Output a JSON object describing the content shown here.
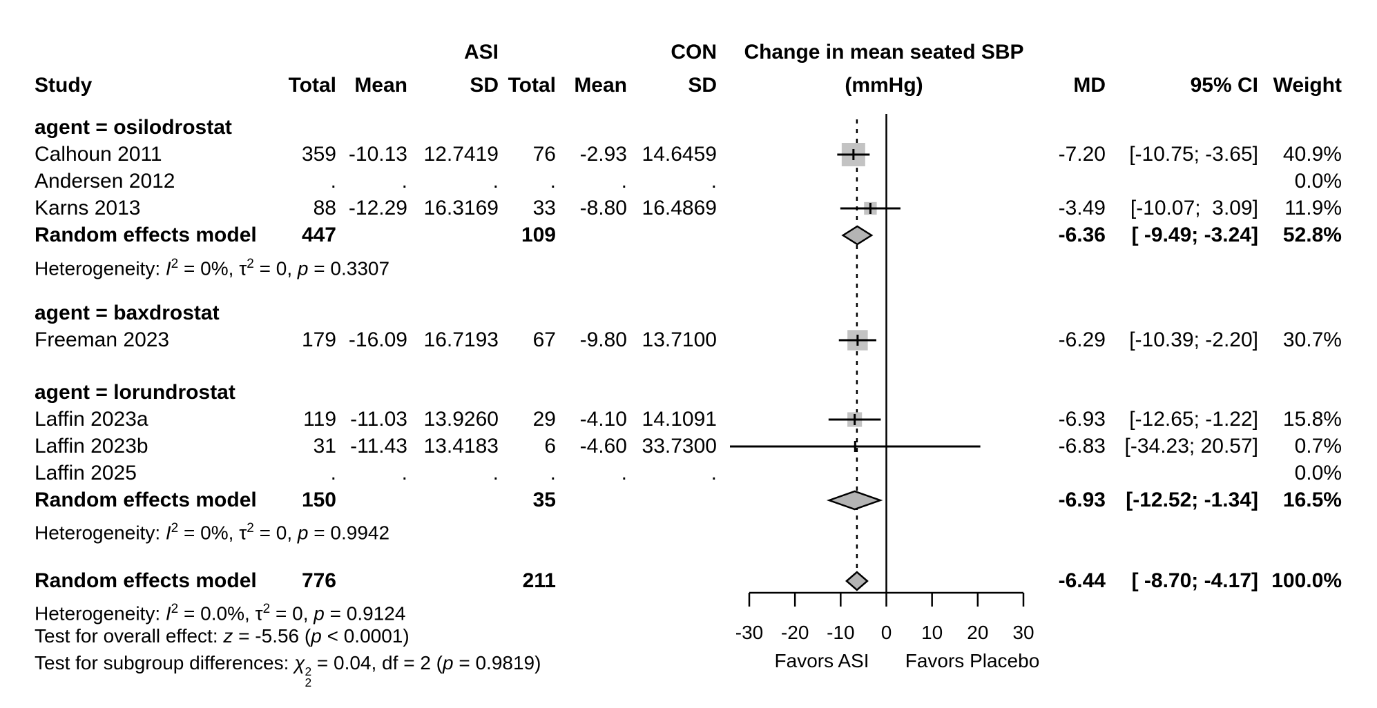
{
  "header": {
    "study": "Study",
    "asi": "ASI",
    "con": "CON",
    "total": "Total",
    "mean": "Mean",
    "sd": "SD",
    "plot_title": "Change in mean seated SBP",
    "plot_title2": "(mmHg)",
    "md": "MD",
    "ci": "95% CI",
    "weight": "Weight"
  },
  "rows": [
    {
      "type": "group",
      "bold": true,
      "label": "agent = osilodrostat"
    },
    {
      "type": "study",
      "bold": false,
      "label": "Calhoun 2011",
      "total1": "359",
      "mean1": "-10.13",
      "sd1": "12.7419",
      "total2": "76",
      "mean2": "-2.93",
      "sd2": "14.6459",
      "md": "-7.20",
      "ci": "[-10.75; -3.65]",
      "weight": "40.9%"
    },
    {
      "type": "study",
      "bold": false,
      "label": "Andersen 2012",
      "total1": ".",
      "mean1": ".",
      "sd1": ".",
      "total2": ".",
      "mean2": ".",
      "sd2": ".",
      "md": "",
      "ci": "",
      "weight": "0.0%"
    },
    {
      "type": "study",
      "bold": false,
      "label": "Karns 2013",
      "total1": "88",
      "mean1": "-12.29",
      "sd1": "16.3169",
      "total2": "33",
      "mean2": "-8.80",
      "sd2": "16.4869",
      "md": "-3.49",
      "ci": "[-10.07;  3.09]",
      "weight": "11.9%"
    },
    {
      "type": "pooled",
      "bold": true,
      "label": "Random effects model",
      "total1": "447",
      "total2": "109",
      "md": "-6.36",
      "ci": "[ -9.49; -3.24]",
      "weight": "52.8%"
    },
    {
      "type": "rich",
      "bold": false,
      "text": "Heterogeneity: I² = 0%, τ² = 0, p = 0.3307",
      "segs": [
        {
          "t": "Heterogeneity: "
        },
        {
          "t": "I",
          "i": true
        },
        {
          "t": "2",
          "sup": true
        },
        {
          "t": " = 0%, τ"
        },
        {
          "t": "2",
          "sup": true
        },
        {
          "t": " = 0, "
        },
        {
          "t": "p",
          "i": true
        },
        {
          "t": " = 0.3307"
        }
      ]
    },
    {
      "type": "group",
      "bold": true,
      "label": "agent = baxdrostat"
    },
    {
      "type": "study",
      "bold": false,
      "label": "Freeman 2023",
      "total1": "179",
      "mean1": "-16.09",
      "sd1": "16.7193",
      "total2": "67",
      "mean2": "-9.80",
      "sd2": "13.7100",
      "md": "-6.29",
      "ci": "[-10.39; -2.20]",
      "weight": "30.7%"
    },
    {
      "type": "group",
      "bold": true,
      "label": "agent = lorundrostat"
    },
    {
      "type": "study",
      "bold": false,
      "label": "Laffin 2023a",
      "total1": "119",
      "mean1": "-11.03",
      "sd1": "13.9260",
      "total2": "29",
      "mean2": "-4.10",
      "sd2": "14.1091",
      "md": "-6.93",
      "ci": "[-12.65; -1.22]",
      "weight": "15.8%"
    },
    {
      "type": "study",
      "bold": false,
      "label": "Laffin 2023b",
      "total1": "31",
      "mean1": "-11.43",
      "sd1": "13.4183",
      "total2": "6",
      "mean2": "-4.60",
      "sd2": "33.7300",
      "md": "-6.83",
      "ci": "[-34.23; 20.57]",
      "weight": "0.7%"
    },
    {
      "type": "study",
      "bold": false,
      "label": "Laffin 2025",
      "total1": ".",
      "mean1": ".",
      "sd1": ".",
      "total2": ".",
      "mean2": ".",
      "sd2": ".",
      "md": "",
      "ci": "",
      "weight": "0.0%"
    },
    {
      "type": "pooled",
      "bold": true,
      "label": "Random effects model",
      "total1": "150",
      "total2": "35",
      "md": "-6.93",
      "ci": "[-12.52; -1.34]",
      "weight": "16.5%"
    },
    {
      "type": "rich",
      "bold": false,
      "text": "Heterogeneity: I² = 0%, τ² = 0, p = 0.9942",
      "segs": [
        {
          "t": "Heterogeneity: "
        },
        {
          "t": "I",
          "i": true
        },
        {
          "t": "2",
          "sup": true
        },
        {
          "t": " = 0%, τ"
        },
        {
          "t": "2",
          "sup": true
        },
        {
          "t": " = 0, "
        },
        {
          "t": "p",
          "i": true
        },
        {
          "t": " = 0.9942"
        }
      ]
    },
    {
      "type": "pooled",
      "bold": true,
      "label": "Random effects model",
      "total1": "776",
      "total2": "211",
      "md": "-6.44",
      "ci": "[ -8.70; -4.17]",
      "weight": "100.0%"
    },
    {
      "type": "rich",
      "bold": false,
      "text": "Heterogeneity: I² = 0.0%, τ² = 0, p = 0.9124",
      "segs": [
        {
          "t": "Heterogeneity: "
        },
        {
          "t": "I",
          "i": true
        },
        {
          "t": "2",
          "sup": true
        },
        {
          "t": " = 0.0%, τ"
        },
        {
          "t": "2",
          "sup": true
        },
        {
          "t": " = 0, "
        },
        {
          "t": "p",
          "i": true
        },
        {
          "t": " = 0.9124"
        }
      ]
    },
    {
      "type": "rich",
      "bold": false,
      "text": "Test for overall effect: z = -5.56 (p < 0.0001)",
      "segs": [
        {
          "t": "Test for overall effect: "
        },
        {
          "t": "z",
          "i": true
        },
        {
          "t": " = -5.56 ("
        },
        {
          "t": "p",
          "i": true
        },
        {
          "t": " < 0.0001)"
        }
      ]
    },
    {
      "type": "rich",
      "bold": false,
      "text": "Test for subgroup differences: χ₂² = 0.04, df = 2 (p = 0.9819)",
      "segs": [
        {
          "t": "Test for subgroup differences: "
        },
        {
          "t": "χ",
          "i": true
        },
        {
          "stack": [
            "2",
            "2"
          ]
        },
        {
          "t": " = 0.04, df = 2 ("
        },
        {
          "t": "p",
          "i": true
        },
        {
          "t": " = 0.9819)"
        }
      ]
    }
  ],
  "chart_data": {
    "type": "forest",
    "title": "Change in mean seated SBP (mmHg)",
    "xlabel": "",
    "x_ticks": [
      -30,
      -20,
      -10,
      0,
      10,
      20,
      30
    ],
    "x_range": [
      -30,
      30
    ],
    "zero_line": 0,
    "overall_estimate_line": -6.44,
    "favors_left": "Favors ASI",
    "favors_right": "Favors Placebo",
    "studies": [
      {
        "row": 1,
        "label": "Calhoun 2011",
        "md": -7.2,
        "lo": -10.75,
        "hi": -3.65,
        "weight_pct": 40.9
      },
      {
        "row": 3,
        "label": "Karns 2013",
        "md": -3.49,
        "lo": -10.07,
        "hi": 3.09,
        "weight_pct": 11.9
      },
      {
        "row": 7,
        "label": "Freeman 2023",
        "md": -6.29,
        "lo": -10.39,
        "hi": -2.2,
        "weight_pct": 30.7
      },
      {
        "row": 9,
        "label": "Laffin 2023a",
        "md": -6.93,
        "lo": -12.65,
        "hi": -1.22,
        "weight_pct": 15.8
      },
      {
        "row": 10,
        "label": "Laffin 2023b",
        "md": -6.83,
        "lo": -34.23,
        "hi": 20.57,
        "weight_pct": 0.7
      }
    ],
    "diamonds": [
      {
        "row": 4,
        "label": "Random effects model (osilodrostat)",
        "md": -6.36,
        "lo": -9.49,
        "hi": -3.24,
        "weight_pct": 52.8
      },
      {
        "row": 12,
        "label": "Random effects model (lorundrostat)",
        "md": -6.93,
        "lo": -12.52,
        "hi": -1.34,
        "weight_pct": 16.5
      },
      {
        "row": 14,
        "label": "Random effects model (overall)",
        "md": -6.44,
        "lo": -8.7,
        "hi": -4.17,
        "weight_pct": 100.0
      }
    ],
    "colors": {
      "marker_fill": "#c3c3c3",
      "diamond_fill": "#b4b4b4",
      "line": "#000000"
    }
  }
}
